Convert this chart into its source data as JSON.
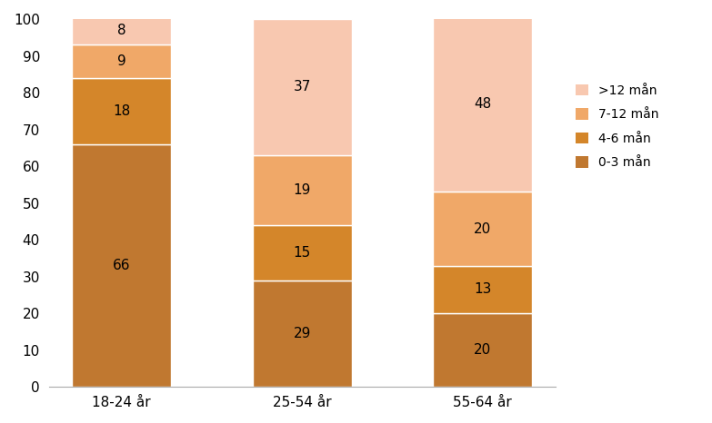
{
  "categories": [
    "18-24 år",
    "25-54 år",
    "55-64 år"
  ],
  "series": {
    "0-3 mån": [
      66,
      29,
      20
    ],
    "4-6 mån": [
      18,
      15,
      13
    ],
    "7-12 mån": [
      9,
      19,
      20
    ],
    ">12 mån": [
      8,
      37,
      48
    ]
  },
  "colors": {
    "0-3 mån": "#C07830",
    "4-6 mån": "#D4862A",
    "7-12 mån": "#F0A868",
    ">12 mån": "#F8C8B0"
  },
  "legend_labels": [
    ">12 mån",
    "7-12 mån",
    "4-6 mån",
    "0-3 mån"
  ],
  "ylim": [
    0,
    100
  ],
  "yticks": [
    0,
    10,
    20,
    30,
    40,
    50,
    60,
    70,
    80,
    90,
    100
  ],
  "bar_width": 0.55,
  "text_fontsize": 11,
  "legend_fontsize": 10,
  "tick_fontsize": 11,
  "figsize": [
    7.83,
    4.66
  ],
  "dpi": 100
}
